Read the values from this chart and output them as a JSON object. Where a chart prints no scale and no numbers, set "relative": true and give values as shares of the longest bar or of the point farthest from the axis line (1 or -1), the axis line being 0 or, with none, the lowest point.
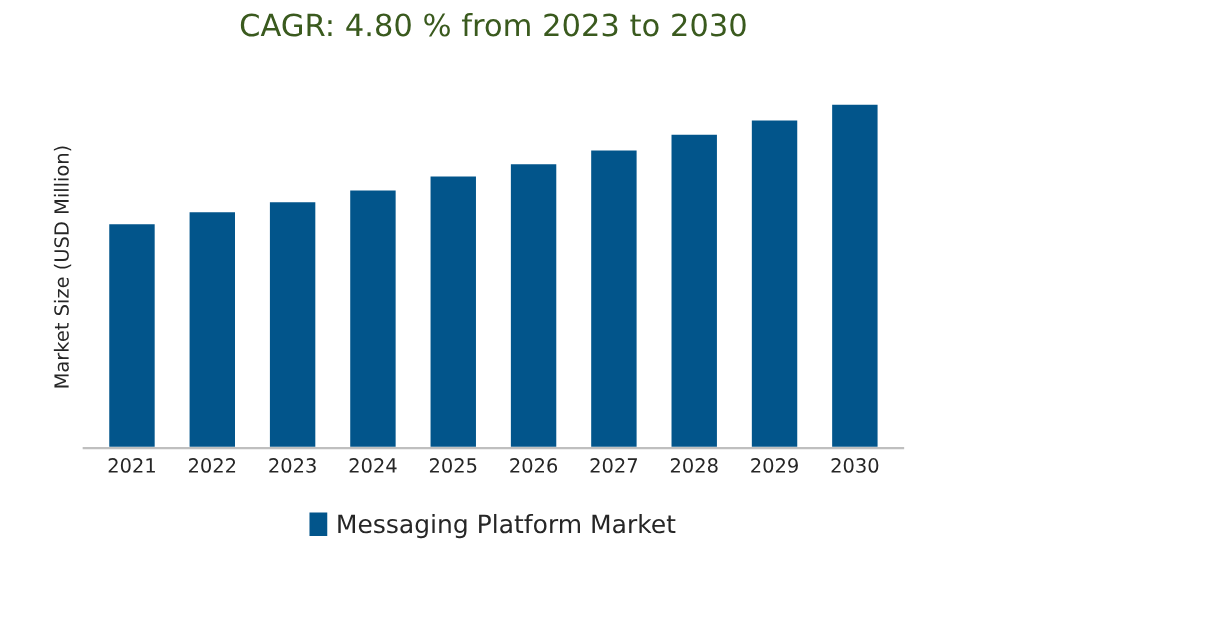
{
  "chart_data": {
    "type": "bar",
    "title": "CAGR: 4.80 % from 2023 to 2030",
    "ylabel": "Market Size (USD Million)",
    "categories": [
      "2021",
      "2022",
      "2023",
      "2024",
      "2025",
      "2026",
      "2027",
      "2028",
      "2029",
      "2030"
    ],
    "series": [
      {
        "name": "Messaging Platform Market",
        "color": "#02558b",
        "values": [
          0.653,
          0.688,
          0.717,
          0.751,
          0.792,
          0.827,
          0.867,
          0.913,
          0.954,
          1
        ]
      }
    ],
    "relative": true,
    "legend": "bottom",
    "grid": false
  }
}
